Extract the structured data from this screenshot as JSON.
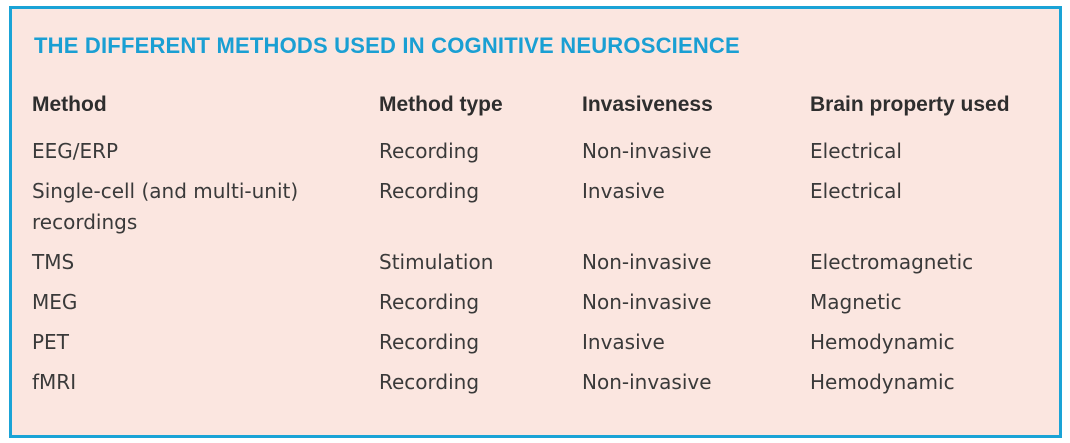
{
  "title": "THE DIFFERENT METHODS USED IN COGNITIVE NEUROSCIENCE",
  "table": {
    "headers": [
      "Method",
      "Method type",
      "Invasiveness",
      "Brain property used"
    ],
    "rows": [
      [
        "EEG/ERP",
        "Recording",
        "Non-invasive",
        "Electrical"
      ],
      [
        "Single-cell (and multi-unit) recordings",
        "Recording",
        "Invasive",
        "Electrical"
      ],
      [
        "TMS",
        "Stimulation",
        "Non-invasive",
        "Electromagnetic"
      ],
      [
        "MEG",
        "Recording",
        "Non-invasive",
        "Magnetic"
      ],
      [
        "PET",
        "Recording",
        "Invasive",
        "Hemodynamic"
      ],
      [
        "fMRI",
        "Recording",
        "Non-invasive",
        "Hemodynamic"
      ]
    ]
  },
  "colors": {
    "accent": "#1aa3d6",
    "background": "#fbe6e0",
    "text": "#3a3a3a"
  }
}
